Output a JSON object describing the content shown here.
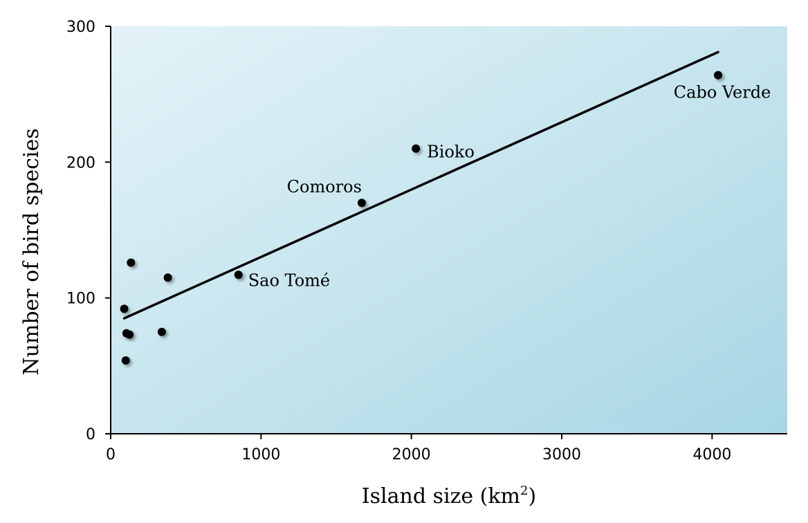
{
  "chart_data": {
    "type": "scatter",
    "title": "",
    "xlabel": "Island size (km",
    "xlabel_sup": "2",
    "xlabel_close": ")",
    "ylabel": "Number of bird species",
    "xlim": [
      0,
      4500
    ],
    "ylim": [
      0,
      300
    ],
    "x_ticks": [
      0,
      1000,
      2000,
      3000,
      4000
    ],
    "y_ticks": [
      0,
      100,
      200,
      300
    ],
    "x_tick_labels": [
      "0",
      "1000",
      "2000",
      "3000",
      "4000"
    ],
    "y_tick_labels": [
      "0",
      "100",
      "200",
      "300"
    ],
    "grid": false,
    "series": [
      {
        "points": [
          {
            "x": 90,
            "y": 92,
            "label": ""
          },
          {
            "x": 100,
            "y": 54,
            "label": ""
          },
          {
            "x": 105,
            "y": 74,
            "label": ""
          },
          {
            "x": 125,
            "y": 73,
            "label": ""
          },
          {
            "x": 135,
            "y": 126,
            "label": ""
          },
          {
            "x": 340,
            "y": 75,
            "label": ""
          },
          {
            "x": 380,
            "y": 115,
            "label": ""
          },
          {
            "x": 850,
            "y": 117,
            "label": "Sao Tomé"
          },
          {
            "x": 1670,
            "y": 170,
            "label": "Comoros"
          },
          {
            "x": 2030,
            "y": 210,
            "label": "Bioko"
          },
          {
            "x": 4040,
            "y": 264,
            "label": "Cabo Verde"
          }
        ]
      }
    ],
    "trendline": {
      "x": [
        90,
        4040
      ],
      "y": [
        85,
        281
      ]
    },
    "colors": {
      "background_start": "#e4f3f8",
      "background_end": "#a8d6e4",
      "marker": "#000000",
      "line": "#000000"
    }
  }
}
